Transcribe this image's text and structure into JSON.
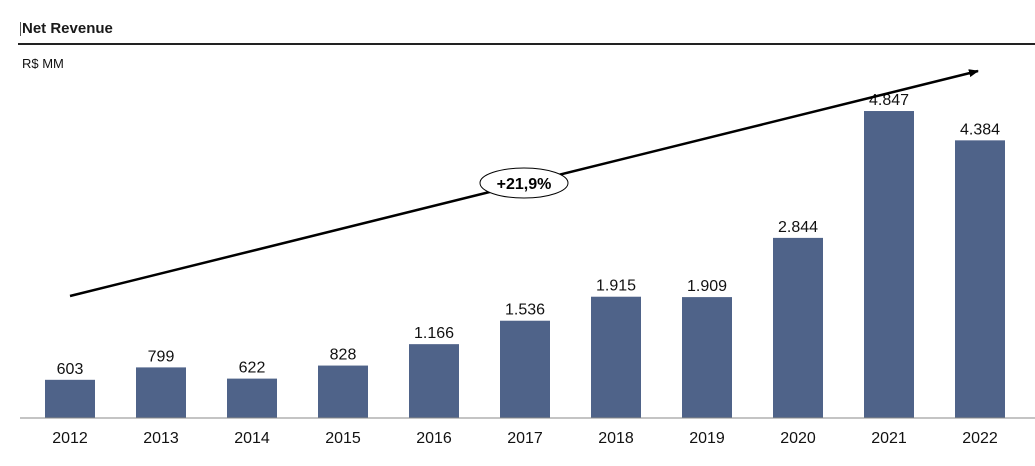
{
  "header": {
    "title": "Net Revenue",
    "unit": "R$ MM"
  },
  "chart_data": {
    "type": "bar",
    "categories": [
      "2012",
      "2013",
      "2014",
      "2015",
      "2016",
      "2017",
      "2018",
      "2019",
      "2020",
      "2021",
      "2022"
    ],
    "values": [
      603,
      799,
      622,
      828,
      1166,
      1536,
      1915,
      1909,
      2844,
      4847,
      4384
    ],
    "value_labels": [
      "603",
      "799",
      "622",
      "828",
      "1.166",
      "1.536",
      "1.915",
      "1.909",
      "2.844",
      "4.847",
      "4.384"
    ],
    "bar_color": "#4f6389",
    "ylim": [
      0,
      5400
    ],
    "grid": false,
    "annotation": {
      "type": "arrow",
      "label": "+21,9%"
    }
  }
}
